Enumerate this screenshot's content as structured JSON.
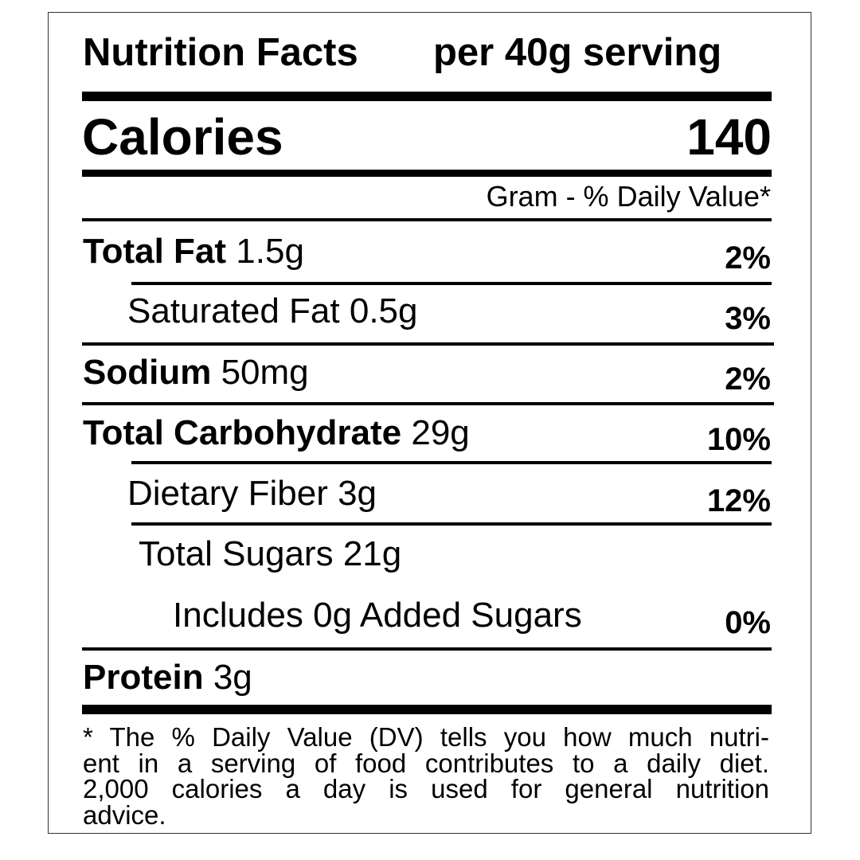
{
  "header": {
    "title": "Nutrition Facts",
    "serving": "per 40g serving"
  },
  "calories": {
    "label": "Calories",
    "value": "140"
  },
  "column_header": "Gram - % Daily Value*",
  "rows": [
    {
      "label": "Total Fat",
      "amount": "1.5g",
      "dv": "2%"
    },
    {
      "label": "Saturated Fat",
      "amount": "0.5g",
      "dv": "3%"
    },
    {
      "label": "Sodium",
      "amount": "50mg",
      "dv": "2%"
    },
    {
      "label": "Total Carbohydrate",
      "amount": "29g",
      "dv": "10%"
    },
    {
      "label": "Dietary Fiber",
      "amount": "3g",
      "dv": "12%"
    },
    {
      "label": "Total Sugars",
      "amount": "21g"
    },
    {
      "label": "Includes 0g Added Sugars",
      "dv": "0%"
    },
    {
      "label": "Protein",
      "amount": "3g"
    }
  ],
  "footnote": [
    "* The % Daily Value (DV) tells you how much nutri-",
    "ent in a serving of food contributes to a daily diet.",
    "2,000 calories a day is used for general nutrition",
    "advice."
  ]
}
